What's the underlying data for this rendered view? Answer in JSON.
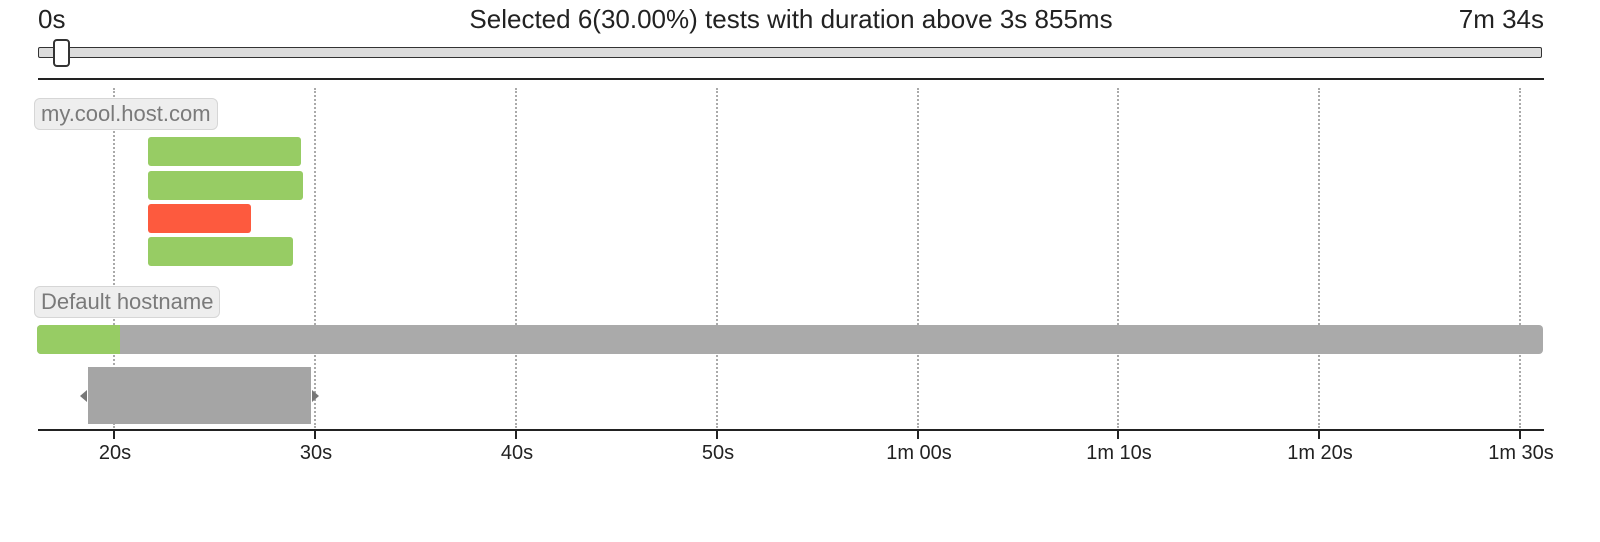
{
  "range": {
    "min_label": "0s",
    "max_label": "7m 34s",
    "summary": "Selected 6(30.00%) tests with duration above 3s 855ms",
    "handle_fraction": 0.015
  },
  "colors": {
    "passed": "#97cc64",
    "failed": "#fd5a3e",
    "overview": "#aaaaaa",
    "host_label_bg": "#eeeeee"
  },
  "axis": {
    "range_seconds": [
      16.2,
      91.2
    ],
    "ticks": [
      {
        "value": 20,
        "label": "20s"
      },
      {
        "value": 30,
        "label": "30s"
      },
      {
        "value": 40,
        "label": "40s"
      },
      {
        "value": 50,
        "label": "50s"
      },
      {
        "value": 60,
        "label": "1m 00s"
      },
      {
        "value": 70,
        "label": "1m 10s"
      },
      {
        "value": 80,
        "label": "1m 20s"
      },
      {
        "value": 90,
        "label": "1m 30s"
      }
    ]
  },
  "hosts": [
    {
      "name": "my.cool.host.com",
      "tests": [
        {
          "status": "passed",
          "start": 21.7,
          "end": 29.3
        },
        {
          "status": "passed",
          "start": 21.7,
          "end": 29.4
        },
        {
          "status": "failed",
          "start": 21.7,
          "end": 26.8
        },
        {
          "status": "passed",
          "start": 21.7,
          "end": 28.9
        }
      ]
    },
    {
      "name": "Default hostname",
      "tests": []
    }
  ],
  "overview": {
    "passed_fraction": 0.055,
    "brush_seconds": [
      18.7,
      29.8
    ]
  }
}
